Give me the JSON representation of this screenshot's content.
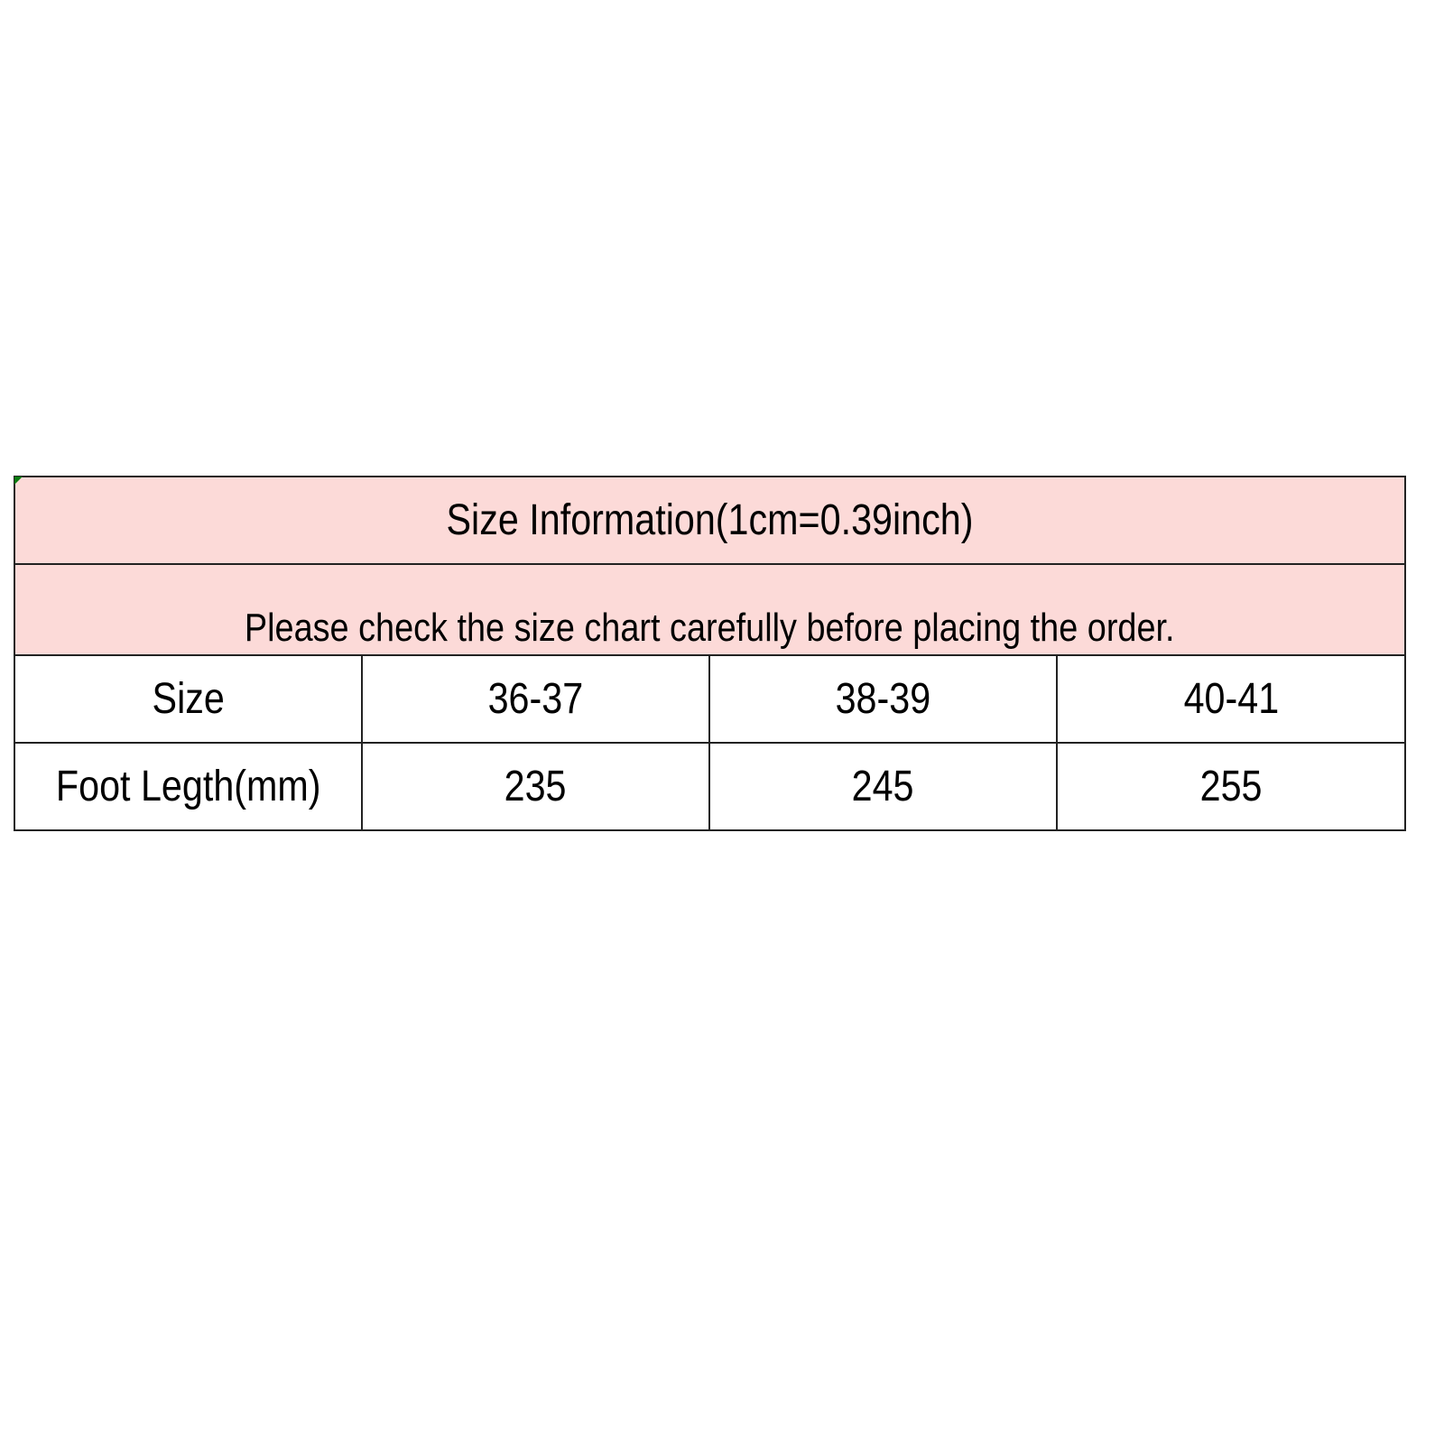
{
  "title": "Size Information(1cm=0.39inch)",
  "notice": "Please check the size chart carefully before placing the order.",
  "header_fill_color": "#fcdad8",
  "rows": [
    {
      "label": "Size",
      "values": [
        "36-37",
        "38-39",
        "40-41"
      ]
    },
    {
      "label": "Foot Legth(mm)",
      "values": [
        "235",
        "245",
        "255"
      ]
    }
  ]
}
